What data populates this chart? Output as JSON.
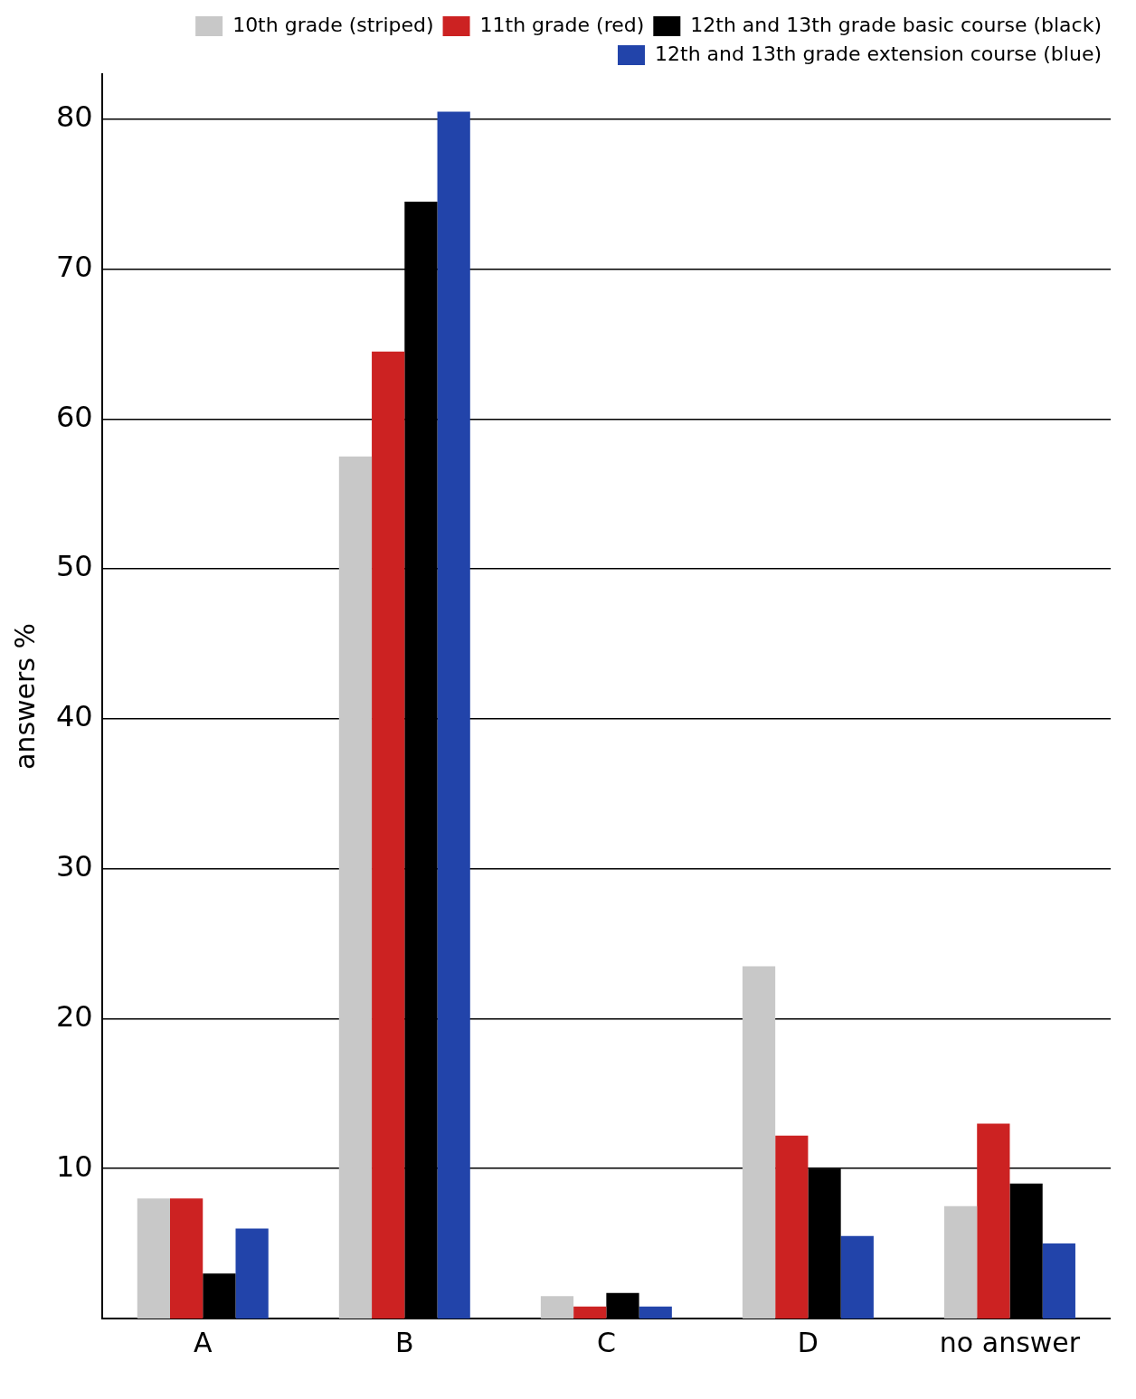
{
  "chart_data": {
    "type": "bar",
    "ylabel": "answers %",
    "categories": [
      "A",
      "B",
      "C",
      "D",
      "no answer"
    ],
    "series": [
      {
        "name": "10th grade (striped)",
        "color": "#c8c8c8",
        "values": [
          8,
          57.5,
          1.5,
          23.5,
          7.5
        ]
      },
      {
        "name": "11th grade (red)",
        "color": "#cc2222",
        "values": [
          8,
          64.5,
          0.8,
          12.2,
          13
        ]
      },
      {
        "name": "12th and 13th grade basic course (black)",
        "color": "#000000",
        "values": [
          3,
          74.5,
          1.7,
          10,
          9
        ]
      },
      {
        "name": "12th and 13th grade extension course (blue)",
        "color": "#2244aa",
        "values": [
          6,
          80.5,
          0.8,
          5.5,
          5
        ]
      }
    ],
    "ylim": [
      0,
      83
    ],
    "yticks": [
      10,
      20,
      30,
      40,
      50,
      60,
      70,
      80
    ],
    "grid": "y",
    "legend": "top right"
  }
}
